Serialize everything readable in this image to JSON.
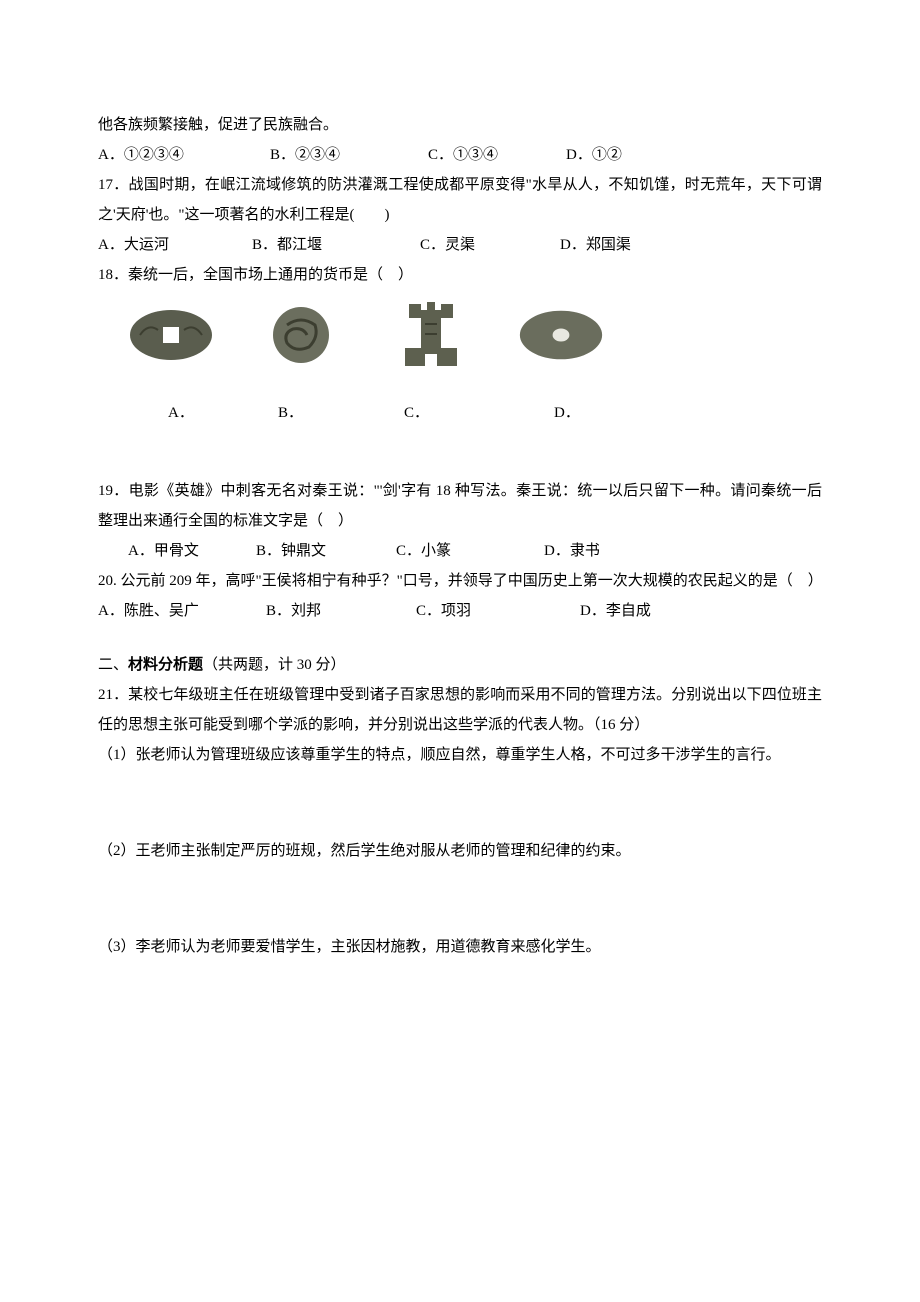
{
  "line_continuation": "他各族频繁接触，促进了民族融合。",
  "q16": {
    "opts": [
      "A．①②③④",
      "B．②③④",
      "C．①③④",
      "D．①②"
    ],
    "opt_widths": [
      "172px",
      "158px",
      "138px",
      "auto"
    ]
  },
  "q17": {
    "text": "17．战国时期，在岷江流域修筑的防洪灌溉工程使成都平原变得\"水旱从人，不知饥馑，时无荒年，天下可谓之'天府'也。\"这一项著名的水利工程是(　　)",
    "opts": [
      "A．大运河",
      "B．都江堰",
      "C．灵渠",
      "D．郑国渠"
    ],
    "opt_widths": [
      "154px",
      "168px",
      "140px",
      "auto"
    ]
  },
  "q18": {
    "text": "18．秦统一后，全国市场上通用的货币是（　）",
    "coin_labels": [
      "A．",
      "B．",
      "C．",
      "D．"
    ],
    "label_widths": [
      "110px",
      "126px",
      "150px",
      "auto"
    ],
    "coin_colors": {
      "a_fill": "#5a5d4e",
      "b_fill": "#6b6e5e",
      "c_fill": "#5d604f",
      "d_fill": "#6a6d5d",
      "hole": "#ffffff"
    }
  },
  "q19": {
    "text": "19．电影《英雄》中刺客无名对秦王说：\"'剑'字有 18 种写法。秦王说：统一以后只留下一种。请问秦统一后整理出来通行全国的标准文字是（　）",
    "indent": "　　",
    "opts": [
      "A．甲骨文",
      "B．钟鼎文",
      "C．小篆",
      "D．隶书"
    ],
    "opt_widths": [
      "128px",
      "140px",
      "148px",
      "auto"
    ]
  },
  "q20": {
    "text": "20. 公元前 209 年，高呼\"王侯将相宁有种乎？\"口号，并领导了中国历史上第一次大规模的农民起义的是（　）",
    "opts": [
      "A．陈胜、吴广",
      "B．刘邦",
      "C．项羽",
      "D．李自成"
    ],
    "opt_widths": [
      "168px",
      "150px",
      "164px",
      "auto"
    ]
  },
  "section2": {
    "heading_prefix": "二、",
    "heading_bold": "材料分析题",
    "heading_suffix": "（共两题，计 30 分）"
  },
  "q21": {
    "stem": "21．某校七年级班主任在班级管理中受到诸子百家思想的影响而采用不同的管理方法。分别说出以下四位班主任的思想主张可能受到哪个学派的影响，并分别说出这些学派的代表人物。（16 分）",
    "sub1": "（1）张老师认为管理班级应该尊重学生的特点，顺应自然，尊重学生人格，不可过多干涉学生的言行。",
    "sub2": "（2）王老师主张制定严厉的班规，然后学生绝对服从老师的管理和纪律的约束。",
    "sub3": "（3）李老师认为老师要爱惜学生，主张因材施教，用道德教育来感化学生。"
  }
}
